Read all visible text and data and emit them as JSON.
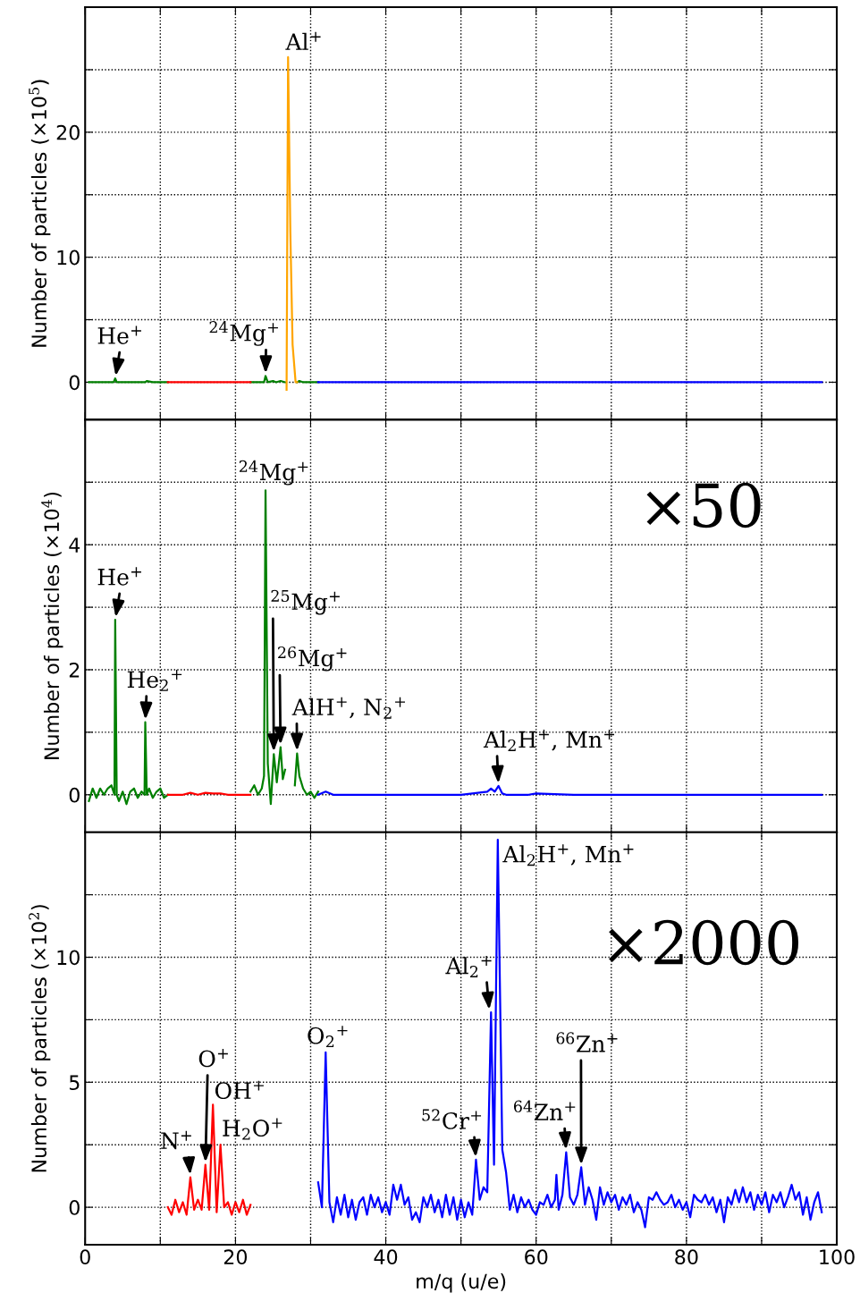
{
  "chart_data": [
    {
      "type": "line",
      "ylabel": "Number of particles (×10$^{5}$)",
      "xlim": [
        0,
        100
      ],
      "ylim": [
        -3,
        30
      ],
      "grid": true,
      "tick_labels": "y",
      "xticks": [
        0,
        {
          "value": 10,
          "label": null
        },
        20,
        {
          "value": 30,
          "label": null
        },
        40,
        {
          "value": 50,
          "label": null
        },
        60,
        {
          "value": 70,
          "label": null
        },
        80,
        {
          "value": 90,
          "label": null
        },
        100
      ],
      "yticks": [
        0,
        {
          "value": 5,
          "label": null
        },
        10,
        {
          "value": 15,
          "label": null
        },
        20,
        {
          "value": 25,
          "label": null
        }
      ],
      "series": [
        {
          "color": "#008000",
          "x": [
            0.5,
            1,
            2,
            3,
            3.8,
            4,
            4.2,
            5,
            6,
            7,
            8,
            8.2,
            9,
            10,
            11,
            16,
            22,
            23,
            23.8,
            24,
            24.3,
            25,
            25.4,
            26,
            26.6,
            27.4,
            28.2,
            28.5,
            29,
            30,
            31
          ],
          "values": [
            0,
            0,
            0,
            0,
            0,
            0.3,
            0,
            0,
            0,
            0,
            0,
            0.1,
            0,
            0,
            0,
            null,
            0,
            0,
            0,
            0.5,
            0,
            0.1,
            0,
            0.1,
            0,
            null,
            0,
            0.1,
            0,
            0,
            0
          ]
        },
        {
          "color": "#ff0000",
          "x": [
            11,
            13,
            15,
            17,
            19,
            21,
            22
          ],
          "values": [
            0,
            0,
            0,
            0,
            0,
            0,
            0
          ]
        },
        {
          "color": "#0000ff",
          "x": [
            31,
            40,
            50,
            55,
            60,
            70,
            80,
            90,
            98
          ],
          "values": [
            0,
            0,
            0,
            0,
            0,
            0,
            0,
            0,
            0
          ]
        },
        {
          "color": "#ffa500",
          "x": [
            26.8,
            27.0,
            27.3,
            27.6,
            28.0,
            28.2
          ],
          "values": [
            -0.6,
            26,
            12,
            3,
            0,
            0
          ]
        }
      ],
      "annotations": [
        {
          "text": "He$^{+}$",
          "x": 4.0,
          "y": 0.3
        },
        {
          "text": "$^{24}$Mg$^{+}$",
          "x": 24.0,
          "y": 0.5
        },
        {
          "text": "Al$^{+}$",
          "x": 27.0,
          "y": 26
        }
      ]
    },
    {
      "type": "line",
      "ylabel": "Number of particles (×10$^{4}$)",
      "xlim": [
        0,
        100
      ],
      "ylim": [
        -0.6,
        6
      ],
      "grid": true,
      "tick_labels": "y",
      "xticks": [
        0,
        {
          "value": 10,
          "label": null
        },
        20,
        {
          "value": 30,
          "label": null
        },
        40,
        {
          "value": 50,
          "label": null
        },
        60,
        {
          "value": 70,
          "label": null
        },
        80,
        {
          "value": 90,
          "label": null
        },
        100
      ],
      "yticks": [
        0,
        {
          "value": 1,
          "label": null
        },
        2,
        {
          "value": 3,
          "label": null
        },
        4,
        {
          "value": 5,
          "label": null
        }
      ],
      "series": [
        {
          "color": "#008000",
          "x": [
            0.5,
            1,
            1.5,
            2,
            2.5,
            3,
            3.5,
            3.9,
            4,
            4.2,
            4.5,
            5,
            5.5,
            6,
            6.5,
            7,
            7.5,
            7.9,
            8,
            8.2,
            8.5,
            9,
            9.5,
            10,
            10.5,
            11,
            16,
            22,
            22.5,
            23,
            23.5,
            23.8,
            24,
            24.3,
            24.7,
            25.1,
            25.5,
            26,
            26.3,
            26.6,
            27.3,
            27.9,
            28.2,
            28.5,
            29,
            29.5,
            30,
            30.5,
            31
          ],
          "values": [
            -0.1,
            0.1,
            -0.05,
            0.1,
            0,
            0.1,
            0.15,
            0,
            2.8,
            0,
            -0.1,
            0.05,
            -0.15,
            0.05,
            0.1,
            -0.05,
            0.05,
            0,
            1.16,
            0,
            0.1,
            -0.05,
            0.05,
            0.1,
            -0.05,
            0,
            null,
            0.05,
            0.15,
            0,
            0.1,
            0.3,
            4.87,
            0.5,
            -0.15,
            0.65,
            0.2,
            0.76,
            0.25,
            0.4,
            null,
            0.15,
            0.66,
            0.3,
            0.1,
            0,
            0.05,
            -0.05,
            0.05
          ]
        },
        {
          "color": "#ff0000",
          "x": [
            11,
            12,
            13,
            14,
            15,
            16,
            17,
            18,
            19,
            20,
            21,
            22
          ],
          "values": [
            0,
            0,
            0,
            0.03,
            0,
            0.03,
            0.02,
            0.02,
            0,
            0,
            0,
            0
          ]
        },
        {
          "color": "#0000ff",
          "x": [
            31,
            32,
            33,
            35,
            40,
            45,
            50,
            53.5,
            54,
            54.5,
            55,
            55.5,
            56,
            59,
            60,
            65,
            70,
            80,
            90,
            98
          ],
          "values": [
            0,
            0.05,
            0,
            0,
            0,
            0,
            0,
            0.05,
            0.1,
            0.05,
            0.14,
            0.02,
            0,
            0,
            0.02,
            0,
            0,
            0,
            0,
            0
          ]
        }
      ],
      "annotations": [
        {
          "text": "He$^{+}$",
          "x": 4.0,
          "y": 2.8
        },
        {
          "text": "He$_{2}$$^{+}$",
          "x": 8.0,
          "y": 1.16
        },
        {
          "text": "$^{24}$Mg$^{+}$",
          "x": 24.0,
          "y": 4.87
        },
        {
          "text": "$^{25}$Mg$^{+}$",
          "x": 25.1,
          "y": 0.65
        },
        {
          "text": "$^{26}$Mg$^{+}$",
          "x": 26.0,
          "y": 0.76
        },
        {
          "text": "AlH$^{+}$, N$_{2}$$^{+}$",
          "x": 28.2,
          "y": 0.66
        },
        {
          "text": "Al$_{2}$H$^{+}$, Mn$^{+}$",
          "x": 55.0,
          "y": 0.14
        },
        "×50"
      ]
    },
    {
      "type": "line",
      "ylabel": "Number of particles (×10$^{2}$)",
      "xlabel": "m/q (u/e)",
      "xlim": [
        0,
        100
      ],
      "ylim": [
        -1.5,
        15
      ],
      "grid": true,
      "xticks": [
        0,
        {
          "value": 10,
          "label": null
        },
        20,
        {
          "value": 30,
          "label": null
        },
        40,
        {
          "value": 50,
          "label": null
        },
        60,
        {
          "value": 70,
          "label": null
        },
        80,
        {
          "value": 90,
          "label": null
        },
        100
      ],
      "yticks": [
        0,
        {
          "value": 2.5,
          "label": null
        },
        5,
        {
          "value": 7.5,
          "label": null
        },
        10,
        {
          "value": 12.5,
          "label": null
        }
      ],
      "series": [
        {
          "color": "#ff0000",
          "x": [
            11,
            11.5,
            12,
            12.5,
            13,
            13.5,
            14,
            14.5,
            15,
            15.5,
            16,
            16.5,
            17,
            17.5,
            18,
            18.5,
            19,
            19.5,
            20,
            20.5,
            21,
            21.5,
            22
          ],
          "values": [
            0,
            -0.3,
            0.3,
            -0.2,
            0.2,
            -0.3,
            1.2,
            -0.1,
            0.3,
            -0.1,
            1.7,
            -0.1,
            4.1,
            -0.2,
            2.5,
            0,
            0.2,
            -0.3,
            0.2,
            -0.2,
            0.3,
            -0.3,
            0.1
          ]
        },
        {
          "color": "#0000ff",
          "x": [
            31,
            31.5,
            32,
            32.5,
            33,
            33.5,
            34,
            34.5,
            35,
            35.5,
            36,
            36.5,
            37,
            37.5,
            38,
            38.5,
            39,
            39.5,
            40,
            40.5,
            41,
            41.5,
            42,
            42.5,
            43,
            43.5,
            44,
            44.5,
            45,
            45.5,
            46,
            46.5,
            47,
            47.5,
            48,
            48.5,
            49,
            49.5,
            50,
            50.5,
            51,
            51.5,
            52,
            52.5,
            53,
            53.5,
            54,
            54.4,
            54.9,
            55.5,
            56,
            56.5,
            57,
            57.5,
            58,
            58.5,
            59,
            59.5,
            60,
            60.5,
            61,
            61.5,
            62,
            62.5,
            62.7,
            63,
            63.5,
            64,
            64.5,
            65,
            65.5,
            66,
            66.5,
            67,
            67.5,
            68,
            68.5,
            69,
            69.5,
            70,
            70.5,
            71,
            71.5,
            72,
            72.5,
            73,
            73.5,
            74,
            74.5,
            75,
            75.5,
            76,
            76.5,
            77,
            77.5,
            78,
            78.5,
            79,
            79.5,
            80,
            80.5,
            81,
            81.5,
            82,
            82.5,
            83,
            83.5,
            84,
            84.5,
            85,
            85.5,
            86,
            86.5,
            87,
            87.5,
            88,
            88.5,
            89,
            89.5,
            90,
            90.5,
            91,
            91.5,
            92,
            92.5,
            93,
            93.5,
            94,
            94.5,
            95,
            95.5,
            96,
            96.5,
            97,
            97.5,
            98
          ],
          "values": [
            1.0,
            0,
            6.2,
            0.2,
            -0.6,
            0.4,
            -0.3,
            0.5,
            -0.4,
            0.3,
            -0.5,
            0.2,
            0.4,
            -0.3,
            0.5,
            0,
            0.4,
            -0.2,
            0.2,
            -0.3,
            0.9,
            0.3,
            0.9,
            0.1,
            0.4,
            -0.5,
            -0.2,
            -0.6,
            0.4,
            0,
            0.5,
            -0.2,
            0.3,
            -0.4,
            0.5,
            -0.3,
            0.4,
            -0.5,
            0.3,
            -0.4,
            0.2,
            -0.3,
            1.9,
            0.3,
            0.8,
            0.6,
            7.8,
            1.7,
            14.7,
            2.3,
            1.4,
            -0.1,
            0.5,
            -0.2,
            0.4,
            0,
            0.3,
            -0.1,
            -0.3,
            0.2,
            0.1,
            0.5,
            0,
            0.3,
            1.3,
            -0.1,
            0.5,
            2.2,
            0.4,
            0.1,
            0.5,
            1.6,
            0.1,
            0.8,
            0.3,
            -0.5,
            0.8,
            0.1,
            0.6,
            0.2,
            0.5,
            -0.1,
            0.4,
            0.1,
            0.5,
            -0.2,
            0.2,
            -0.1,
            -0.8,
            0.4,
            0.3,
            0.6,
            0.3,
            0.1,
            0.2,
            0.5,
            0,
            0.3,
            -0.1,
            0.2,
            -0.4,
            0.5,
            0.3,
            0.2,
            0.5,
            0.1,
            0.4,
            -0.2,
            0.3,
            -0.6,
            0.4,
            0.1,
            0.7,
            0.2,
            0.8,
            0.2,
            0.6,
            -0.1,
            0.5,
            0.1,
            0.6,
            -0.2,
            0.5,
            0.2,
            0.6,
            0,
            0.4,
            0.9,
            0.3,
            0.6,
            -0.3,
            0.4,
            -0.5,
            0.2,
            0.6,
            -0.2
          ]
        }
      ],
      "annotations": [
        {
          "text": "N$^{+}$",
          "x": 14.0,
          "y": 1.2
        },
        {
          "text": "O$^{+}$",
          "x": 16.0,
          "y": 1.7
        },
        {
          "text": "OH$^{+}$",
          "x": 17.0,
          "y": 4.1
        },
        {
          "text": "H$_{2}$O$^{+}$",
          "x": 18.0,
          "y": 2.5
        },
        {
          "text": "O$_{2}$$^{+}$",
          "x": 32.0,
          "y": 6.2
        },
        {
          "text": "$^{52}$Cr$^{+}$",
          "x": 52.0,
          "y": 1.9
        },
        {
          "text": "Al$_{2}$$^{+}$",
          "x": 53.8,
          "y": 7.8
        },
        {
          "text": "Al$_{2}$H$^{+}$, Mn$^{+}$",
          "x": 54.9,
          "y": 14.7
        },
        {
          "text": "$^{64}$Zn$^{+}$",
          "x": 64.0,
          "y": 2.2
        },
        {
          "text": "$^{66}$Zn$^{+}$",
          "x": 66.0,
          "y": 1.6
        },
        "×2000"
      ]
    }
  ]
}
